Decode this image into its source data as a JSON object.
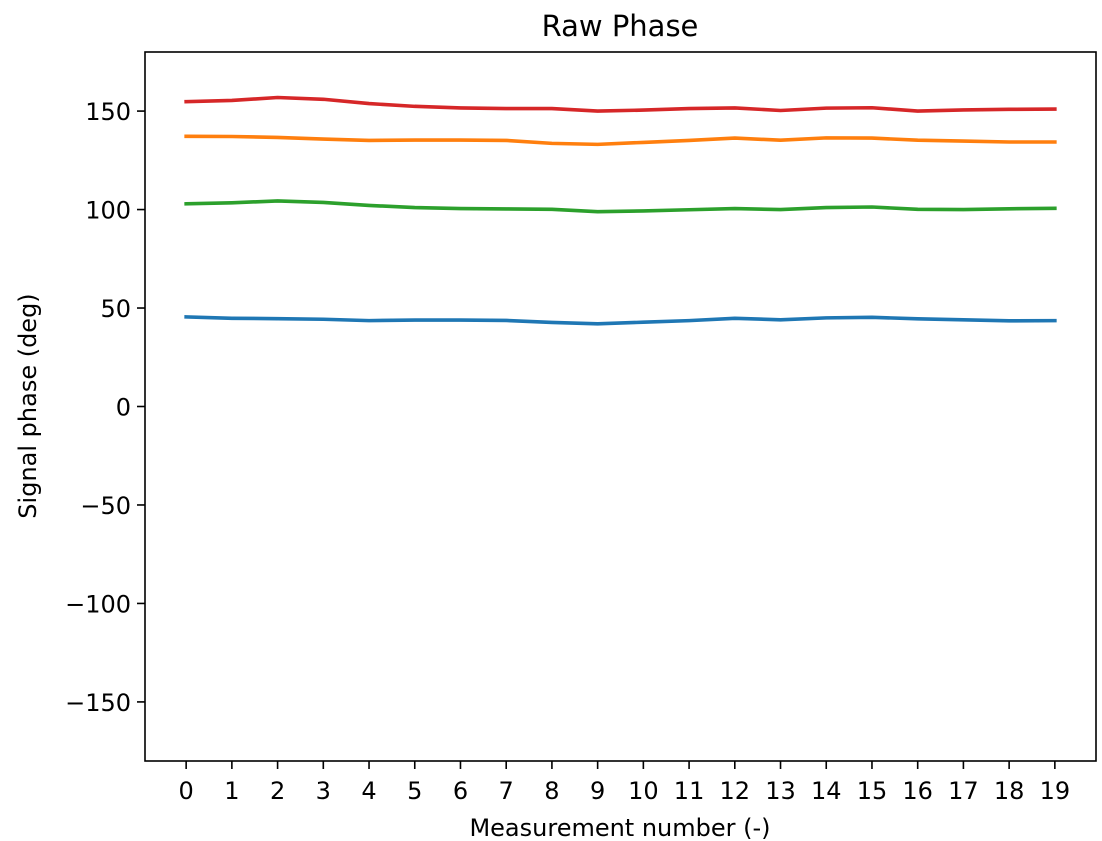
{
  "chart_data": {
    "type": "line",
    "title": "Raw Phase",
    "xlabel": "Measurement number (-)",
    "ylabel": "Signal phase (deg)",
    "xlim": [
      -0.9,
      19.9
    ],
    "ylim": [
      -180,
      180
    ],
    "x": [
      0,
      1,
      2,
      3,
      4,
      5,
      6,
      7,
      8,
      9,
      10,
      11,
      12,
      13,
      14,
      15,
      16,
      17,
      18,
      19
    ],
    "xticks": [
      0,
      1,
      2,
      3,
      4,
      5,
      6,
      7,
      8,
      9,
      10,
      11,
      12,
      13,
      14,
      15,
      16,
      17,
      18,
      19
    ],
    "yticks": [
      -150,
      -100,
      -50,
      0,
      50,
      100,
      150
    ],
    "ytick_labels": [
      "−150",
      "−100",
      "−50",
      "0",
      "50",
      "100",
      "150"
    ],
    "grid": false,
    "legend": "none",
    "series": [
      {
        "color": "#1f77b4",
        "values": [
          45.5,
          44.8,
          44.6,
          44.3,
          43.6,
          43.9,
          43.9,
          43.7,
          42.7,
          42.0,
          42.8,
          43.6,
          44.8,
          44.0,
          45.0,
          45.3,
          44.5,
          44.0,
          43.5,
          43.6
        ]
      },
      {
        "color": "#ff7f0e",
        "values": [
          137.2,
          137.1,
          136.6,
          135.8,
          135.1,
          135.3,
          135.3,
          135.1,
          133.6,
          133.1,
          134.1,
          135.1,
          136.3,
          135.2,
          136.4,
          136.3,
          135.2,
          134.8,
          134.3,
          134.3
        ]
      },
      {
        "color": "#2ca02c",
        "values": [
          102.9,
          103.4,
          104.4,
          103.6,
          102.1,
          101.0,
          100.5,
          100.3,
          100.1,
          98.9,
          99.3,
          99.9,
          100.5,
          100.0,
          101.0,
          101.3,
          100.1,
          100.0,
          100.4,
          100.6
        ]
      },
      {
        "color": "#d62728",
        "values": [
          154.8,
          155.4,
          156.9,
          156.0,
          153.8,
          152.4,
          151.6,
          151.3,
          151.3,
          150.0,
          150.5,
          151.3,
          151.6,
          150.3,
          151.5,
          151.7,
          150.0,
          150.6,
          150.9,
          151.0
        ]
      }
    ]
  }
}
